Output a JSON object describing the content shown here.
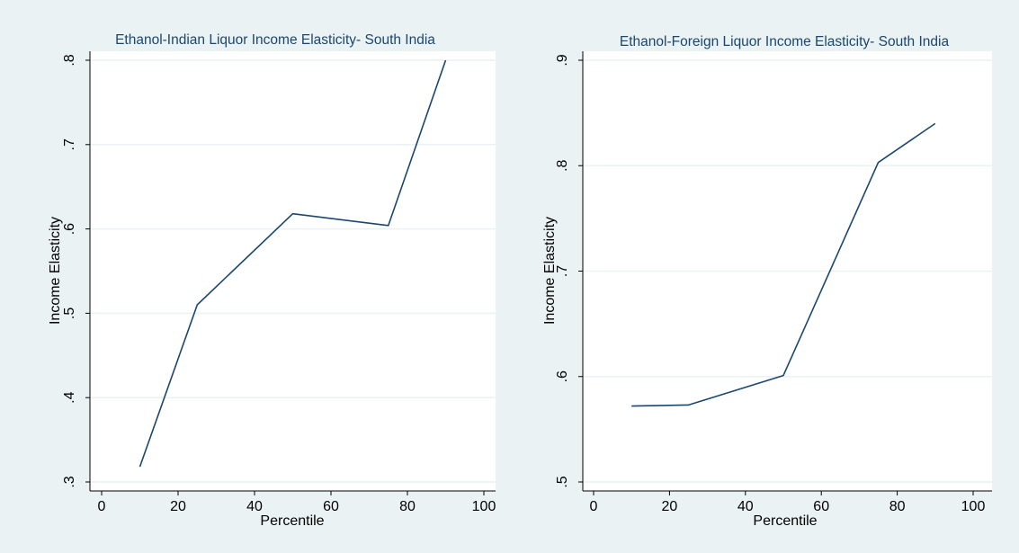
{
  "colors": {
    "background": "#eaf2f3",
    "plot_background": "#ffffff",
    "line": "#1a476f",
    "title": "#1a476f",
    "grid": "#eaf2f3"
  },
  "chart_data": [
    {
      "type": "line",
      "title": "Ethanol-Indian Liquor Income Elasticity- South India",
      "xlabel": "Percentile",
      "ylabel": "Income Elasticity",
      "xlim": [
        0,
        100
      ],
      "ylim": [
        0.3,
        0.8
      ],
      "xticks": [
        0,
        20,
        40,
        60,
        80,
        100
      ],
      "xtick_labels": [
        "0",
        "20",
        "40",
        "60",
        "80",
        "100"
      ],
      "yticks": [
        0.3,
        0.4,
        0.5,
        0.6,
        0.7,
        0.8
      ],
      "ytick_labels": [
        ".3",
        ".4",
        ".5",
        ".6",
        ".7",
        ".8"
      ],
      "grid": true,
      "series": [
        {
          "x": [
            10,
            25,
            50,
            75,
            90
          ],
          "y": [
            0.318,
            0.51,
            0.618,
            0.604,
            0.8
          ]
        }
      ]
    },
    {
      "type": "line",
      "title": "Ethanol-Foreign Liquor Income Elasticity- South India",
      "xlabel": "Percentile",
      "ylabel": "Income Elasticity",
      "xlim": [
        0,
        100
      ],
      "ylim": [
        0.5,
        0.9
      ],
      "xticks": [
        0,
        20,
        40,
        60,
        80,
        100
      ],
      "xtick_labels": [
        "0",
        "20",
        "40",
        "60",
        "80",
        "100"
      ],
      "yticks": [
        0.5,
        0.6,
        0.7,
        0.8,
        0.9
      ],
      "ytick_labels": [
        ".5",
        ".6",
        ".7",
        ".8",
        ".9"
      ],
      "grid": true,
      "series": [
        {
          "x": [
            10,
            25,
            50,
            75,
            90
          ],
          "y": [
            0.572,
            0.573,
            0.601,
            0.803,
            0.84
          ]
        }
      ]
    }
  ]
}
